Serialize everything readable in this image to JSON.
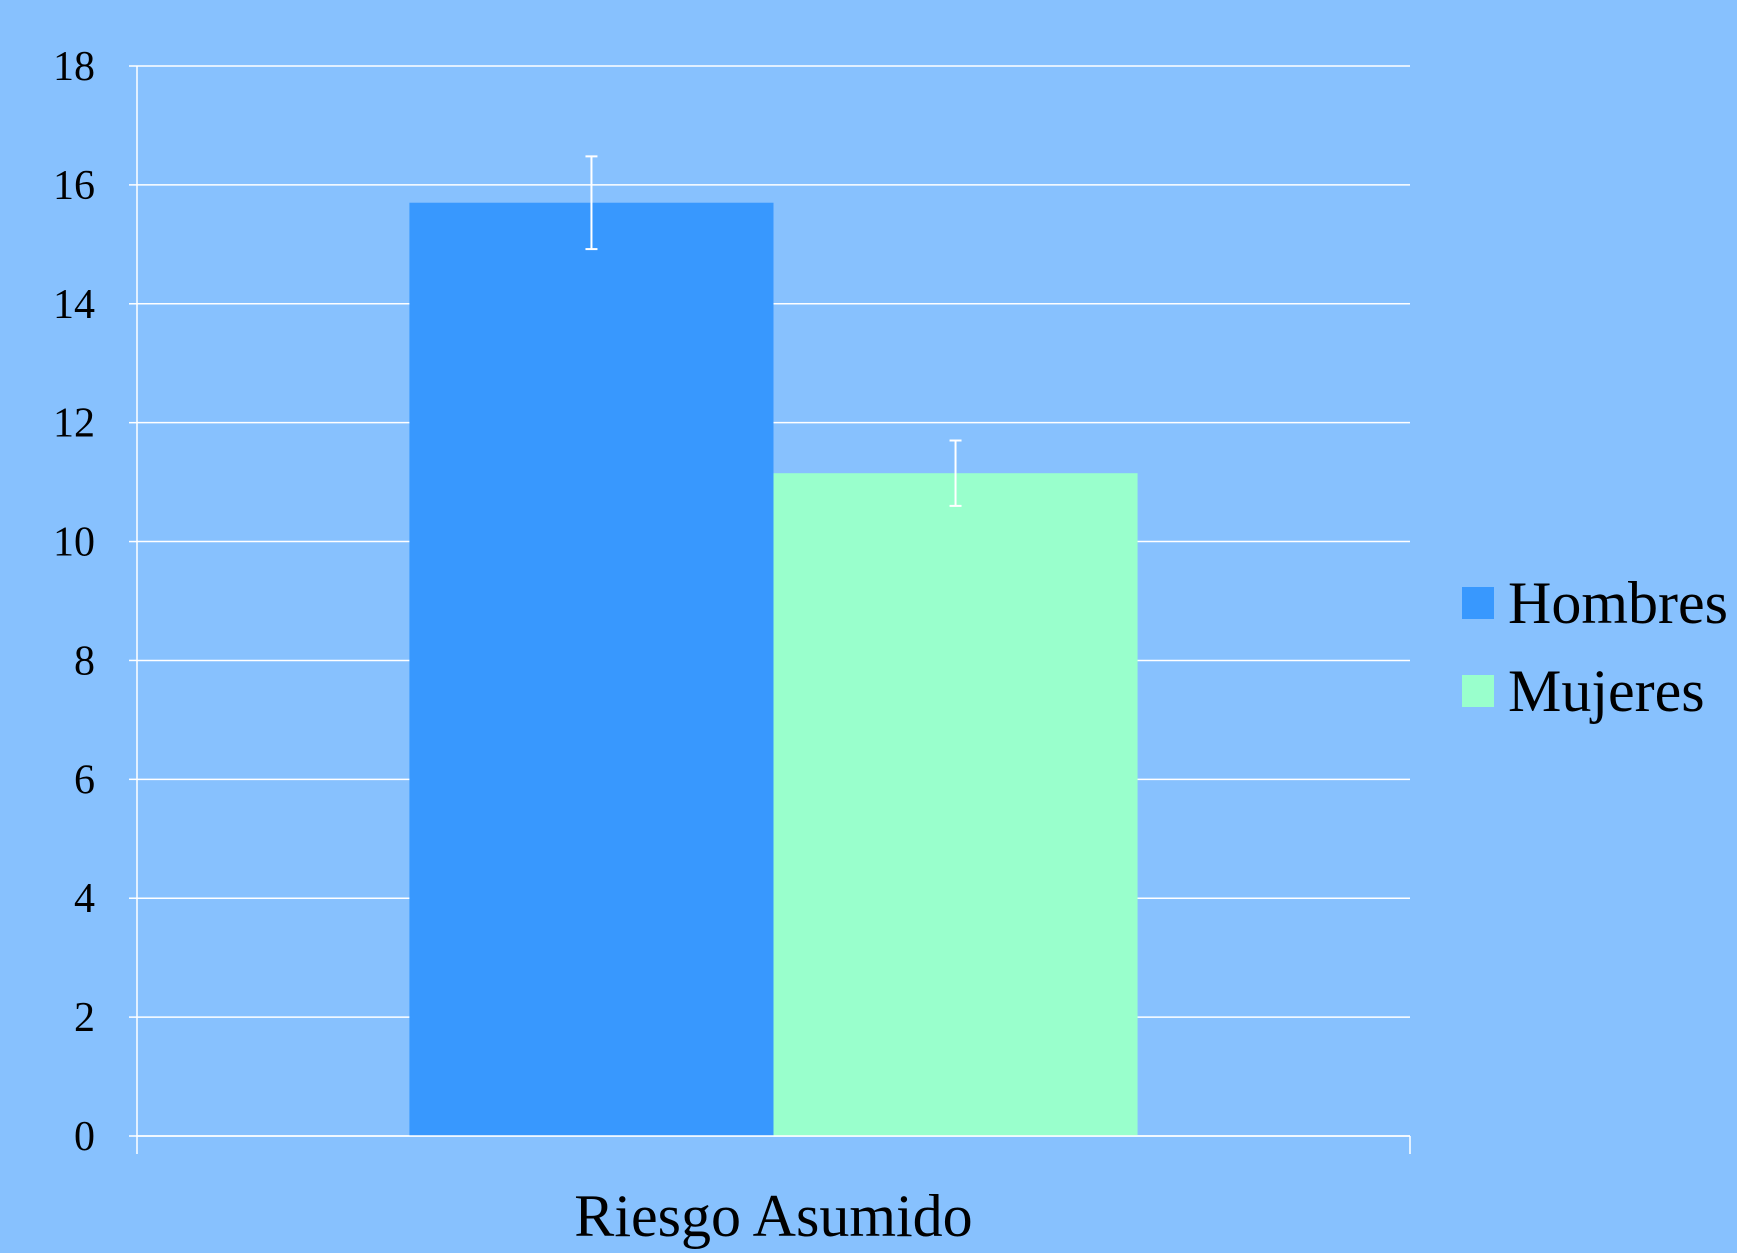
{
  "chart_data": {
    "type": "bar",
    "categories": [
      "Riesgo Asumido"
    ],
    "series": [
      {
        "name": "Hombres",
        "values": [
          15.7
        ],
        "error": [
          0.78
        ],
        "color": "#3898fe"
      },
      {
        "name": "Mujeres",
        "values": [
          11.15
        ],
        "error": [
          0.55
        ],
        "color": "#99ffcc"
      }
    ],
    "title": "",
    "xlabel": "",
    "ylabel": "",
    "ylim": [
      0,
      18
    ],
    "yticks": [
      "0",
      "2",
      "4",
      "6",
      "8",
      "10",
      "12",
      "14",
      "16",
      "18"
    ],
    "grid": true,
    "legend_position": "right",
    "colors": {
      "background": "#87c1fe",
      "grid": "#ffffff",
      "error_bar": "#ffffff",
      "text": "#000000"
    }
  }
}
